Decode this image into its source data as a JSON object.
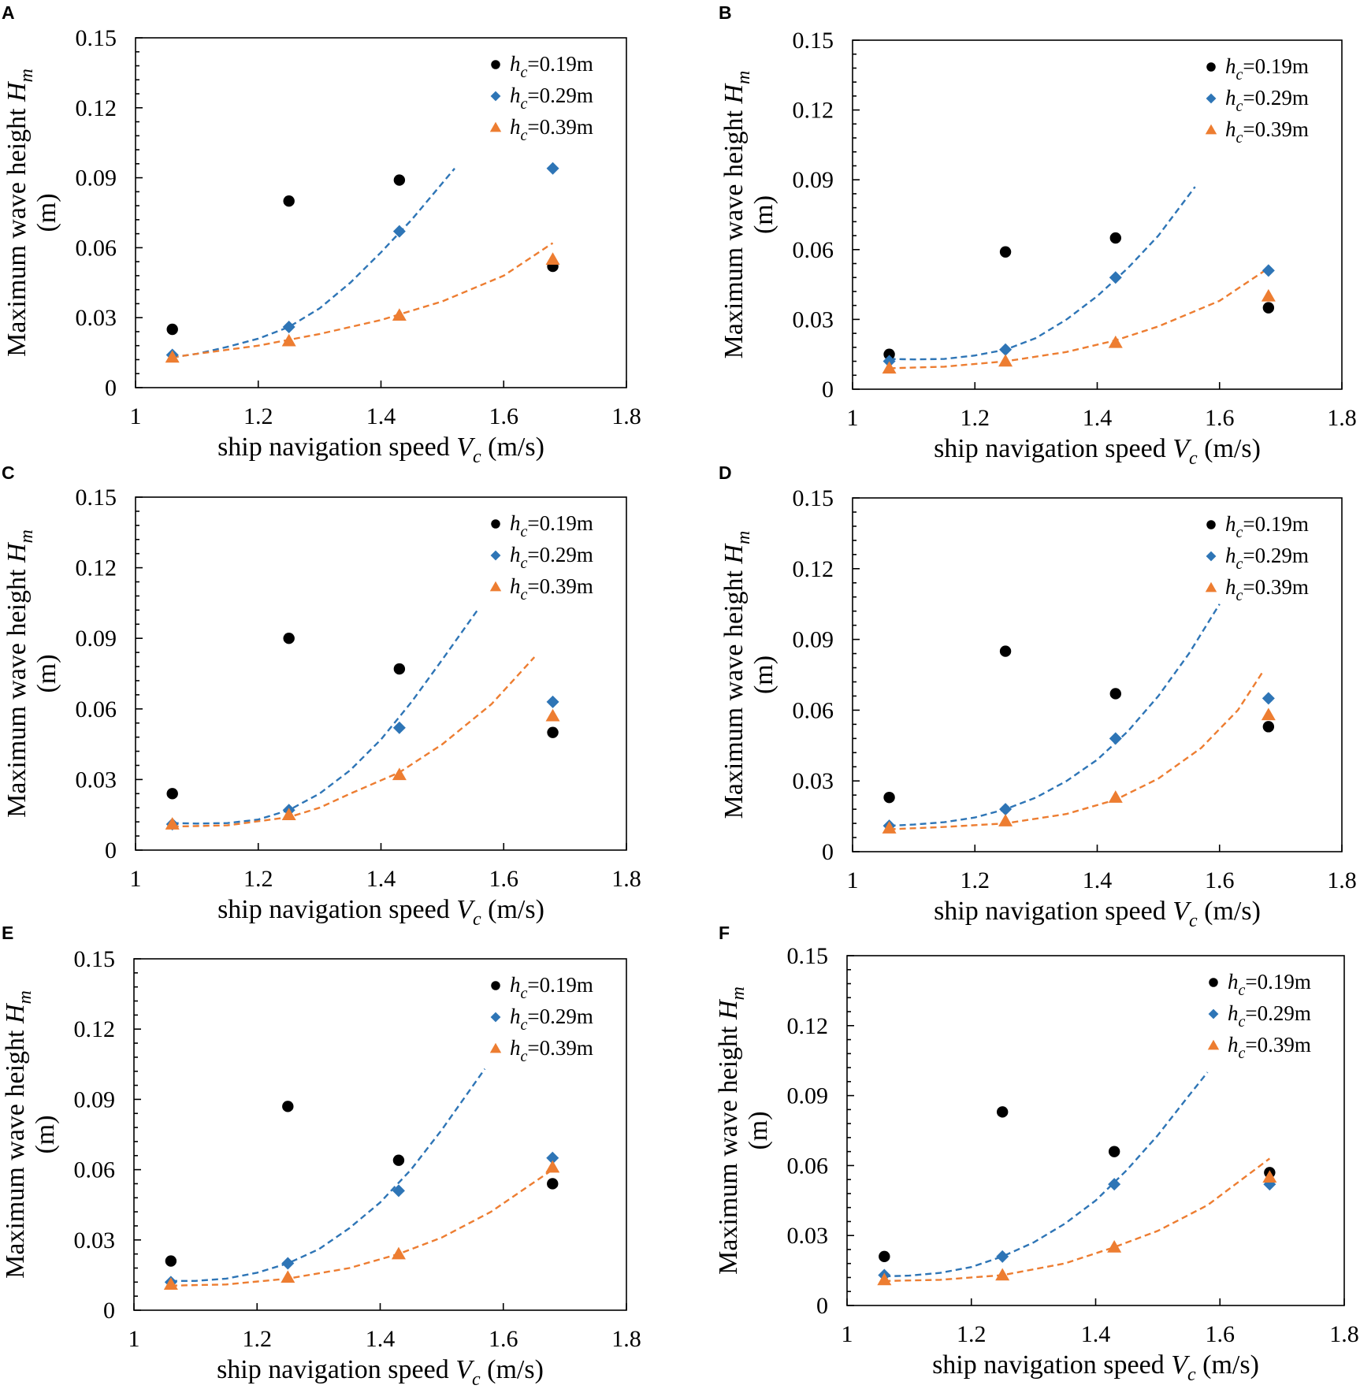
{
  "colors": {
    "series_0_19": "#000000",
    "series_0_29": "#2e75b6",
    "series_0_39": "#ed7d31"
  },
  "chart_data": [
    {
      "panel": "A",
      "type": "scatter",
      "xlabel_main": "ship navigation speed ",
      "xlabel_sym": "V",
      "xlabel_sub": "c",
      "xlabel_unit": " (m/s)",
      "ylabel_line1_main": "Maximum wave height ",
      "ylabel_line1_sym": "H",
      "ylabel_line1_sub": "m",
      "ylabel_line2": "(m)",
      "xlim": [
        1,
        1.8
      ],
      "ylim": [
        0,
        0.15
      ],
      "xticks": [
        "1",
        "1.2",
        "1.4",
        "1.6",
        "1.8"
      ],
      "yticks": [
        "0",
        "0.03",
        "0.06",
        "0.09",
        "0.12",
        "0.15"
      ],
      "legend_position": "top-right",
      "series": [
        {
          "sym": "h",
          "sub": "c",
          "rest": "=0.19m",
          "marker": "circle",
          "x": [
            1.06,
            1.25,
            1.43,
            1.68
          ],
          "y": [
            0.025,
            0.08,
            0.089,
            0.052
          ]
        },
        {
          "sym": "h",
          "sub": "c",
          "rest": "=0.29m",
          "marker": "diamond",
          "x": [
            1.06,
            1.25,
            1.43,
            1.68
          ],
          "y": [
            0.014,
            0.026,
            0.067,
            0.094
          ]
        },
        {
          "sym": "h",
          "sub": "c",
          "rest": "=0.39m",
          "marker": "triangle",
          "x": [
            1.06,
            1.25,
            1.43,
            1.68
          ],
          "y": [
            0.013,
            0.02,
            0.031,
            0.055
          ]
        }
      ],
      "fits": [
        {
          "series_index": 1,
          "x": [
            1.06,
            1.1,
            1.15,
            1.2,
            1.25,
            1.3,
            1.35,
            1.4,
            1.45,
            1.52
          ],
          "y": [
            0.013,
            0.0145,
            0.0175,
            0.021,
            0.026,
            0.034,
            0.045,
            0.058,
            0.072,
            0.094
          ]
        },
        {
          "series_index": 2,
          "x": [
            1.06,
            1.1,
            1.2,
            1.3,
            1.4,
            1.5,
            1.6,
            1.68
          ],
          "y": [
            0.013,
            0.0145,
            0.018,
            0.023,
            0.029,
            0.037,
            0.048,
            0.062
          ]
        }
      ]
    },
    {
      "panel": "B",
      "type": "scatter",
      "xlabel_main": "ship navigation speed ",
      "xlabel_sym": "V",
      "xlabel_sub": "c",
      "xlabel_unit": " (m/s)",
      "ylabel_line1_main": "Maximum wave height ",
      "ylabel_line1_sym": "H",
      "ylabel_line1_sub": "m",
      "ylabel_line2": "(m)",
      "xlim": [
        1,
        1.8
      ],
      "ylim": [
        0,
        0.15
      ],
      "xticks": [
        "1",
        "1.2",
        "1.4",
        "1.6",
        "1.8"
      ],
      "yticks": [
        "0",
        "0.03",
        "0.06",
        "0.09",
        "0.12",
        "0.15"
      ],
      "legend_position": "top-right",
      "series": [
        {
          "sym": "h",
          "sub": "c",
          "rest": "=0.19m",
          "marker": "circle",
          "x": [
            1.06,
            1.25,
            1.43,
            1.68
          ],
          "y": [
            0.015,
            0.059,
            0.065,
            0.035
          ]
        },
        {
          "sym": "h",
          "sub": "c",
          "rest": "=0.29m",
          "marker": "diamond",
          "x": [
            1.06,
            1.25,
            1.43,
            1.68
          ],
          "y": [
            0.012,
            0.017,
            0.048,
            0.051
          ]
        },
        {
          "sym": "h",
          "sub": "c",
          "rest": "=0.39m",
          "marker": "triangle",
          "x": [
            1.06,
            1.25,
            1.43,
            1.68
          ],
          "y": [
            0.009,
            0.012,
            0.02,
            0.04
          ]
        }
      ],
      "fits": [
        {
          "series_index": 1,
          "x": [
            1.06,
            1.1,
            1.15,
            1.2,
            1.25,
            1.3,
            1.35,
            1.4,
            1.45,
            1.5,
            1.56
          ],
          "y": [
            0.013,
            0.0128,
            0.013,
            0.0145,
            0.017,
            0.022,
            0.03,
            0.04,
            0.052,
            0.066,
            0.087
          ]
        },
        {
          "series_index": 2,
          "x": [
            1.06,
            1.15,
            1.25,
            1.35,
            1.43,
            1.5,
            1.6,
            1.68
          ],
          "y": [
            0.009,
            0.0097,
            0.012,
            0.016,
            0.021,
            0.027,
            0.038,
            0.052
          ]
        }
      ]
    },
    {
      "panel": "C",
      "type": "scatter",
      "xlabel_main": "ship navigation speed ",
      "xlabel_sym": "V",
      "xlabel_sub": "c",
      "xlabel_unit": " (m/s)",
      "ylabel_line1_main": "Maximum wave height ",
      "ylabel_line1_sym": "H",
      "ylabel_line1_sub": "m",
      "ylabel_line2": "(m)",
      "xlim": [
        1,
        1.8
      ],
      "ylim": [
        0,
        0.15
      ],
      "xticks": [
        "1",
        "1.2",
        "1.4",
        "1.6",
        "1.8"
      ],
      "yticks": [
        "0",
        "0.03",
        "0.06",
        "0.09",
        "0.12",
        "0.15"
      ],
      "legend_position": "top-right",
      "series": [
        {
          "sym": "h",
          "sub": "c",
          "rest": "=0.19m",
          "marker": "circle",
          "x": [
            1.06,
            1.25,
            1.43,
            1.68
          ],
          "y": [
            0.024,
            0.09,
            0.077,
            0.05
          ]
        },
        {
          "sym": "h",
          "sub": "c",
          "rest": "=0.29m",
          "marker": "diamond",
          "x": [
            1.06,
            1.25,
            1.43,
            1.68
          ],
          "y": [
            0.011,
            0.017,
            0.052,
            0.063
          ]
        },
        {
          "sym": "h",
          "sub": "c",
          "rest": "=0.39m",
          "marker": "triangle",
          "x": [
            1.06,
            1.25,
            1.43,
            1.68
          ],
          "y": [
            0.011,
            0.015,
            0.032,
            0.057
          ]
        }
      ],
      "fits": [
        {
          "series_index": 1,
          "x": [
            1.06,
            1.1,
            1.15,
            1.2,
            1.25,
            1.3,
            1.35,
            1.4,
            1.45,
            1.5,
            1.56
          ],
          "y": [
            0.0115,
            0.0113,
            0.0115,
            0.013,
            0.017,
            0.024,
            0.034,
            0.047,
            0.063,
            0.081,
            0.103
          ]
        },
        {
          "series_index": 2,
          "x": [
            1.06,
            1.15,
            1.25,
            1.3,
            1.35,
            1.43,
            1.5,
            1.58,
            1.65
          ],
          "y": [
            0.01,
            0.0105,
            0.014,
            0.018,
            0.024,
            0.033,
            0.045,
            0.062,
            0.082
          ]
        }
      ]
    },
    {
      "panel": "D",
      "type": "scatter",
      "xlabel_main": "ship navigation speed ",
      "xlabel_sym": "V",
      "xlabel_sub": "c",
      "xlabel_unit": " (m/s)",
      "ylabel_line1_main": "Maximum wave height ",
      "ylabel_line1_sym": "H",
      "ylabel_line1_sub": "m",
      "ylabel_line2": "(m)",
      "xlim": [
        1,
        1.8
      ],
      "ylim": [
        0,
        0.15
      ],
      "xticks": [
        "1",
        "1.2",
        "1.4",
        "1.6",
        "1.8"
      ],
      "yticks": [
        "0",
        "0.03",
        "0.06",
        "0.09",
        "0.12",
        "0.15"
      ],
      "legend_position": "top-right",
      "series": [
        {
          "sym": "h",
          "sub": "c",
          "rest": "=0.19m",
          "marker": "circle",
          "x": [
            1.06,
            1.25,
            1.43,
            1.68
          ],
          "y": [
            0.023,
            0.085,
            0.067,
            0.053
          ]
        },
        {
          "sym": "h",
          "sub": "c",
          "rest": "=0.29m",
          "marker": "diamond",
          "x": [
            1.06,
            1.25,
            1.43,
            1.68
          ],
          "y": [
            0.011,
            0.018,
            0.048,
            0.065
          ]
        },
        {
          "sym": "h",
          "sub": "c",
          "rest": "=0.39m",
          "marker": "triangle",
          "x": [
            1.06,
            1.25,
            1.43,
            1.68
          ],
          "y": [
            0.01,
            0.013,
            0.023,
            0.058
          ]
        }
      ],
      "fits": [
        {
          "series_index": 1,
          "x": [
            1.06,
            1.1,
            1.15,
            1.2,
            1.25,
            1.3,
            1.35,
            1.4,
            1.45,
            1.5,
            1.55,
            1.6
          ],
          "y": [
            0.011,
            0.0115,
            0.0125,
            0.0145,
            0.018,
            0.023,
            0.03,
            0.039,
            0.051,
            0.066,
            0.084,
            0.105
          ]
        },
        {
          "series_index": 2,
          "x": [
            1.06,
            1.15,
            1.25,
            1.35,
            1.43,
            1.5,
            1.57,
            1.63,
            1.67
          ],
          "y": [
            0.0095,
            0.0105,
            0.012,
            0.016,
            0.022,
            0.031,
            0.044,
            0.06,
            0.076
          ]
        }
      ]
    },
    {
      "panel": "E",
      "type": "scatter",
      "xlabel_main": "ship navigation speed ",
      "xlabel_sym": "V",
      "xlabel_sub": "c",
      "xlabel_unit": " (m/s)",
      "ylabel_line1_main": "Maximum wave height ",
      "ylabel_line1_sym": "H",
      "ylabel_line1_sub": "m",
      "ylabel_line2": "(m)",
      "xlim": [
        1,
        1.8
      ],
      "ylim": [
        0,
        0.15
      ],
      "xticks": [
        "1",
        "1.2",
        "1.4",
        "1.6",
        "1.8"
      ],
      "yticks": [
        "0",
        "0.03",
        "0.06",
        "0.09",
        "0.12",
        "0.15"
      ],
      "legend_position": "top-right",
      "series": [
        {
          "sym": "h",
          "sub": "c",
          "rest": "=0.19m",
          "marker": "circle",
          "x": [
            1.06,
            1.25,
            1.43,
            1.68
          ],
          "y": [
            0.021,
            0.087,
            0.064,
            0.054
          ]
        },
        {
          "sym": "h",
          "sub": "c",
          "rest": "=0.29m",
          "marker": "diamond",
          "x": [
            1.06,
            1.25,
            1.43,
            1.68
          ],
          "y": [
            0.012,
            0.02,
            0.051,
            0.065
          ]
        },
        {
          "sym": "h",
          "sub": "c",
          "rest": "=0.39m",
          "marker": "triangle",
          "x": [
            1.06,
            1.25,
            1.43,
            1.68
          ],
          "y": [
            0.011,
            0.014,
            0.024,
            0.061
          ]
        }
      ],
      "fits": [
        {
          "series_index": 1,
          "x": [
            1.06,
            1.1,
            1.15,
            1.2,
            1.25,
            1.3,
            1.35,
            1.4,
            1.45,
            1.5,
            1.57
          ],
          "y": [
            0.0125,
            0.0125,
            0.0135,
            0.016,
            0.02,
            0.026,
            0.035,
            0.046,
            0.06,
            0.077,
            0.103
          ]
        },
        {
          "series_index": 2,
          "x": [
            1.06,
            1.15,
            1.25,
            1.35,
            1.43,
            1.5,
            1.58,
            1.68
          ],
          "y": [
            0.0105,
            0.011,
            0.0135,
            0.018,
            0.024,
            0.031,
            0.042,
            0.06
          ]
        }
      ]
    },
    {
      "panel": "F",
      "type": "scatter",
      "xlabel_main": "ship navigation speed ",
      "xlabel_sym": "V",
      "xlabel_sub": "c",
      "xlabel_unit": " (m/s)",
      "ylabel_line1_main": "Maximum wave height ",
      "ylabel_line1_sym": "H",
      "ylabel_line1_sub": "m",
      "ylabel_line2": "(m)",
      "xlim": [
        1,
        1.8
      ],
      "ylim": [
        0,
        0.15
      ],
      "xticks": [
        "1",
        "1.2",
        "1.4",
        "1.6",
        "1.8"
      ],
      "yticks": [
        "0",
        "0.03",
        "0.06",
        "0.09",
        "0.12",
        "0.15"
      ],
      "legend_position": "top-right",
      "series": [
        {
          "sym": "h",
          "sub": "c",
          "rest": "=0.19m",
          "marker": "circle",
          "x": [
            1.06,
            1.25,
            1.43,
            1.68
          ],
          "y": [
            0.021,
            0.083,
            0.066,
            0.057
          ]
        },
        {
          "sym": "h",
          "sub": "c",
          "rest": "=0.29m",
          "marker": "diamond",
          "x": [
            1.06,
            1.25,
            1.43,
            1.68
          ],
          "y": [
            0.013,
            0.021,
            0.052,
            0.052
          ]
        },
        {
          "sym": "h",
          "sub": "c",
          "rest": "=0.39m",
          "marker": "triangle",
          "x": [
            1.06,
            1.25,
            1.43,
            1.68
          ],
          "y": [
            0.011,
            0.013,
            0.025,
            0.055
          ]
        }
      ],
      "fits": [
        {
          "series_index": 1,
          "x": [
            1.06,
            1.1,
            1.15,
            1.2,
            1.25,
            1.3,
            1.35,
            1.4,
            1.45,
            1.5,
            1.55,
            1.58
          ],
          "y": [
            0.0125,
            0.0128,
            0.014,
            0.0165,
            0.021,
            0.027,
            0.035,
            0.045,
            0.058,
            0.073,
            0.09,
            0.1
          ]
        },
        {
          "series_index": 2,
          "x": [
            1.06,
            1.15,
            1.25,
            1.35,
            1.43,
            1.5,
            1.58,
            1.68
          ],
          "y": [
            0.0105,
            0.011,
            0.013,
            0.018,
            0.025,
            0.032,
            0.043,
            0.063
          ]
        }
      ]
    }
  ]
}
